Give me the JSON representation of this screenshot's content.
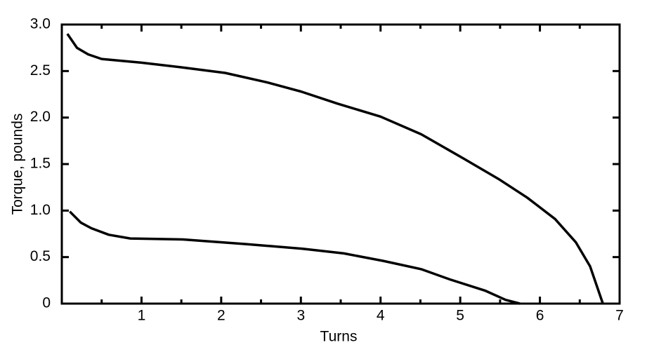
{
  "chart_data": {
    "type": "line",
    "xlabel": "Turns",
    "ylabel": "Torque, pounds",
    "xlim": [
      0,
      7
    ],
    "xticks": [
      1,
      2,
      3,
      4,
      5,
      6,
      7
    ],
    "xminorticks": [
      0.5,
      1.5,
      2.5,
      3.5,
      4.5,
      5.5,
      6.5
    ],
    "ylim": [
      0,
      3
    ],
    "yticks": [
      0,
      0.5,
      {
        "value": 1,
        "label": "1.0"
      },
      1.5,
      {
        "value": 2,
        "label": "2.0"
      },
      2.5,
      {
        "value": 3,
        "label": "3.0"
      }
    ],
    "series": [
      {
        "color": "#000000",
        "x": [
          0.07,
          0.19,
          0.33,
          0.5,
          1.0,
          1.5,
          2.05,
          2.57,
          3.0,
          3.46,
          4.0,
          4.51,
          5.04,
          5.48,
          5.84,
          6.19,
          6.45,
          6.63,
          6.79
        ],
        "values": [
          2.9,
          2.75,
          2.68,
          2.63,
          2.59,
          2.54,
          2.48,
          2.38,
          2.28,
          2.15,
          2.01,
          1.82,
          1.56,
          1.34,
          1.14,
          0.91,
          0.66,
          0.4,
          0
        ]
      },
      {
        "color": "#000000",
        "x": [
          0.1,
          0.24,
          0.37,
          0.59,
          0.86,
          1.52,
          2.31,
          3.02,
          3.54,
          4.03,
          4.51,
          4.87,
          5.31,
          5.57,
          5.75
        ],
        "values": [
          0.99,
          0.87,
          0.81,
          0.74,
          0.7,
          0.69,
          0.64,
          0.59,
          0.54,
          0.46,
          0.37,
          0.26,
          0.14,
          0.04,
          0
        ]
      }
    ]
  }
}
